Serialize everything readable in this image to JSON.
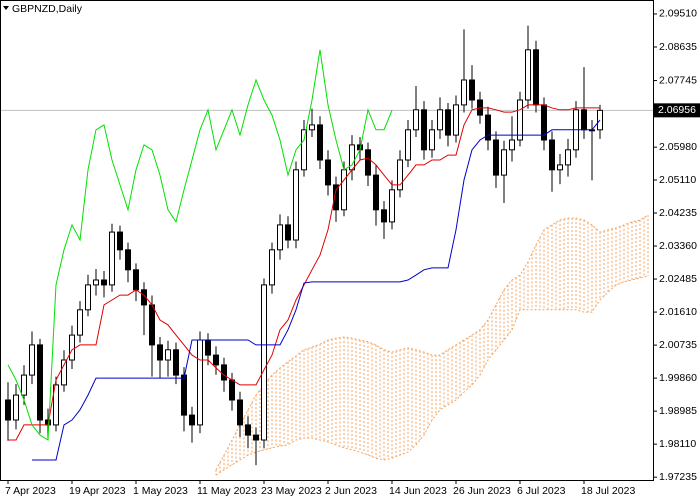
{
  "chart_data": {
    "type": "candlestick",
    "title": "GBPNZD,Daily",
    "categories": [
      "7 Apr 2023",
      null,
      null,
      null,
      null,
      null,
      null,
      null,
      "19 Apr 2023",
      null,
      null,
      null,
      null,
      null,
      null,
      null,
      "1 May 2023",
      null,
      null,
      null,
      null,
      null,
      null,
      null,
      "11 May 2023",
      null,
      null,
      null,
      null,
      null,
      null,
      null,
      "23 May 2023",
      null,
      null,
      null,
      null,
      null,
      null,
      null,
      "2 Jun 2023",
      null,
      null,
      null,
      null,
      null,
      null,
      null,
      "14 Jun 2023",
      null,
      null,
      null,
      null,
      null,
      null,
      null,
      "26 Jun 2023",
      null,
      null,
      null,
      null,
      null,
      null,
      null,
      "6 Jul 2023",
      null,
      null,
      null,
      null,
      null,
      null,
      null,
      "18 Jul 2023",
      null,
      null,
      null,
      null,
      null,
      null,
      null,
      null
    ],
    "open": [
      1.9928,
      1.9875,
      1.9941,
      1.9994,
      2.0074,
      1.9875,
      1.9862,
      1.9968,
      2.0034,
      2.01,
      2.0167,
      2.0233,
      2.0246,
      2.0233,
      2.0373,
      2.0326,
      2.0273,
      2.022,
      2.018,
      2.0074,
      2.0034,
      2.0061,
      1.9994,
      1.9888,
      1.9862,
      2.0087,
      2.0047,
      2.0021,
      1.9981,
      1.9928,
      1.9862,
      1.9835,
      1.9822,
      2.0233,
      2.0326,
      2.0392,
      2.0352,
      2.0538,
      2.0644,
      2.0657,
      2.0564,
      2.0498,
      2.0432,
      2.0538,
      2.0604,
      2.0591,
      2.0524,
      2.0432,
      2.04,
      2.0485,
      2.0564,
      2.0644,
      2.0697,
      2.0591,
      2.0644,
      2.0697,
      2.063,
      2.071,
      2.0776,
      2.0723,
      2.0683,
      2.0617,
      2.0524,
      2.0591,
      2.0617,
      2.0723,
      2.0856,
      2.071,
      2.0617,
      2.0538,
      2.0551,
      2.0591,
      2.0697,
      2.0644,
      2.0644,
      null,
      null,
      null,
      null,
      null,
      null
    ],
    "high": [
      1.9975,
      1.997,
      2.002,
      2.011,
      2.009,
      1.9905,
      1.999,
      2.006,
      2.0125,
      2.019,
      2.026,
      2.0275,
      2.027,
      2.0395,
      2.039,
      2.0345,
      2.029,
      2.024,
      2.0205,
      2.0095,
      2.0085,
      2.008,
      2.0015,
      1.991,
      2.011,
      2.0105,
      2.007,
      2.004,
      2,
      1.995,
      1.9885,
      1.9855,
      2.025,
      2.0345,
      2.042,
      2.0415,
      2.056,
      2.067,
      2.07,
      2.068,
      2.059,
      2.052,
      2.056,
      2.063,
      2.0625,
      2.061,
      2.055,
      2.0455,
      2.051,
      2.059,
      2.067,
      2.076,
      2.072,
      2.067,
      2.073,
      2.0715,
      2.0735,
      2.091,
      2.0815,
      2.0745,
      2.0705,
      2.064,
      2.0615,
      2.068,
      2.0745,
      2.092,
      2.088,
      2.073,
      2.064,
      2.058,
      2.062,
      2.072,
      2.081,
      2.067,
      2.071,
      null,
      null,
      null,
      null,
      null,
      null
    ],
    "low": [
      1.982,
      1.985,
      1.9915,
      1.997,
      1.984,
      1.9825,
      1.9845,
      1.995,
      2.001,
      2.008,
      2.015,
      2.0205,
      2.02,
      2.0215,
      2.03,
      2.024,
      2.019,
      2.01,
      1.999,
      1.9985,
      1.999,
      1.997,
      1.9845,
      1.9815,
      1.984,
      2.002,
      1.9995,
      1.995,
      1.99,
      1.983,
      1.98,
      1.9755,
      1.98,
      2.021,
      2.03,
      2.033,
      2.033,
      2.052,
      2.0625,
      2.054,
      2.047,
      2.04,
      2.0415,
      2.051,
      2.0565,
      2.0495,
      2.039,
      2.0355,
      2.038,
      2.0465,
      2.0545,
      2.0625,
      2.0565,
      2.057,
      2.062,
      2.06,
      2.061,
      2.069,
      2.07,
      2.066,
      2.059,
      2.049,
      2.045,
      2.056,
      2.06,
      2.07,
      2.069,
      2.059,
      2.048,
      2.05,
      2.052,
      2.057,
      2.062,
      2.051,
      2.062,
      null,
      null,
      null,
      null,
      null,
      null
    ],
    "close": [
      1.9875,
      1.9941,
      1.9994,
      2.0074,
      1.9875,
      1.9862,
      1.9968,
      2.0034,
      2.01,
      2.0167,
      2.0233,
      2.0246,
      2.0233,
      2.0373,
      2.0326,
      2.0273,
      2.022,
      2.018,
      2.0074,
      2.0034,
      2.0061,
      1.9994,
      1.9888,
      1.9862,
      2.0087,
      2.0047,
      2.0021,
      1.9981,
      1.9928,
      1.9862,
      1.9835,
      1.9822,
      2.0233,
      2.0326,
      2.0392,
      2.0352,
      2.0538,
      2.0644,
      2.0657,
      2.0564,
      2.0498,
      2.0432,
      2.0538,
      2.0604,
      2.0591,
      2.0524,
      2.0432,
      2.04,
      2.0485,
      2.0564,
      2.0644,
      2.0697,
      2.0591,
      2.0644,
      2.0697,
      2.063,
      2.071,
      2.0776,
      2.0723,
      2.0683,
      2.0617,
      2.0524,
      2.0591,
      2.0617,
      2.0723,
      2.0856,
      2.071,
      2.0617,
      2.0538,
      2.0551,
      2.0591,
      2.0697,
      2.0644,
      2.0644,
      2.06956,
      null,
      null,
      null,
      null,
      null,
      null
    ],
    "up_color": "#ffffff",
    "down_color": "#000000",
    "lines": [
      {
        "color": "#e00000",
        "values": [
          1.9822,
          1.9822,
          1.9862,
          1.9862,
          1.9862,
          1.9862,
          1.9981,
          2.0021,
          2.0061,
          2.0074,
          2.0074,
          2.0074,
          2.018,
          2.0193,
          2.0206,
          2.0206,
          2.022,
          2.0206,
          2.018,
          2.014,
          2.0127,
          2.01,
          2.0074,
          2.0047,
          2.0034,
          2.0034,
          2.0013,
          1.9994,
          1.9981,
          1.9968,
          1.9968,
          1.9968,
          2.0008,
          2.0047,
          2.0114,
          2.014,
          2.0193,
          2.0233,
          2.0273,
          2.0312,
          2.0379,
          2.0485,
          2.0511,
          2.0538,
          2.0564,
          2.0569,
          2.0551,
          2.0524,
          2.0498,
          2.0498,
          2.0524,
          2.0551,
          2.0551,
          2.0564,
          2.0564,
          2.0577,
          2.0577,
          2.0657,
          2.0697,
          2.0702,
          2.0702,
          2.0697,
          2.0691,
          2.0691,
          2.0697,
          2.071,
          2.071,
          2.071,
          2.0702,
          2.0697,
          2.0697,
          2.0702,
          2.0702,
          2.0702,
          2.0702,
          null,
          null,
          null,
          null,
          null,
          null
        ]
      },
      {
        "color": "#0000c8",
        "values": [
          null,
          null,
          null,
          1.9769,
          1.9769,
          1.9769,
          1.9769,
          1.9862,
          1.9875,
          1.9902,
          1.9941,
          1.9986,
          1.9986,
          1.9986,
          1.9986,
          1.9986,
          1.9986,
          1.9986,
          1.9986,
          1.9986,
          1.9986,
          1.9986,
          1.9986,
          2.0087,
          2.0087,
          2.0087,
          2.0087,
          2.0087,
          2.0087,
          2.0087,
          2.0087,
          2.0074,
          2.0074,
          2.0074,
          2.0074,
          2.0114,
          2.0167,
          2.0238,
          2.0241,
          2.0241,
          2.0241,
          2.0241,
          2.0241,
          2.0241,
          2.0241,
          2.0241,
          2.0241,
          2.0241,
          2.0241,
          2.0241,
          2.0246,
          2.0259,
          2.0273,
          2.0278,
          2.0278,
          2.0278,
          2.0379,
          2.0511,
          2.0591,
          2.0617,
          2.063,
          2.063,
          2.063,
          2.063,
          2.063,
          2.063,
          2.063,
          2.063,
          2.0644,
          2.0644,
          2.0644,
          2.0644,
          2.0644,
          2.0644,
          2.067,
          null,
          null,
          null,
          null,
          null,
          null
        ]
      },
      {
        "color": "#00e000",
        "values": [
          2.0021,
          1.9981,
          1.9928,
          1.9862,
          1.9835,
          1.9822,
          2.0233,
          2.0326,
          2.0392,
          2.0352,
          2.0538,
          2.0644,
          2.0657,
          2.0564,
          2.0498,
          2.0432,
          2.0538,
          2.0604,
          2.0591,
          2.0524,
          2.0432,
          2.04,
          2.0485,
          2.0564,
          2.0644,
          2.0697,
          2.0591,
          2.0644,
          2.0697,
          2.063,
          2.071,
          2.0776,
          2.0723,
          2.0683,
          2.0617,
          2.0524,
          2.0591,
          2.0617,
          2.0723,
          2.0856,
          2.071,
          2.0617,
          2.0538,
          2.0551,
          2.0591,
          2.0697,
          2.0644,
          2.0644,
          2.06956,
          null,
          null,
          null,
          null,
          null,
          null,
          null,
          null,
          null,
          null,
          null,
          null,
          null,
          null,
          null,
          null,
          null,
          null,
          null,
          null,
          null,
          null,
          null,
          null,
          null,
          null,
          null,
          null,
          null,
          null,
          null,
          null
        ]
      }
    ],
    "cloud": {
      "color": "#f4a460",
      "upper": [
        null,
        null,
        null,
        null,
        null,
        null,
        null,
        null,
        null,
        null,
        null,
        null,
        null,
        null,
        null,
        null,
        null,
        null,
        null,
        null,
        null,
        null,
        null,
        null,
        null,
        null,
        1.9743,
        1.9782,
        1.9822,
        1.9862,
        1.9902,
        1.9941,
        1.9968,
        1.9994,
        2.0013,
        2.0029,
        2.0045,
        2.0061,
        2.0068,
        2.0076,
        2.0087,
        2.0092,
        2.0095,
        2.0092,
        2.0087,
        2.0082,
        2.0074,
        2.0061,
        2.0055,
        2.0061,
        2.0066,
        2.0061,
        2.0055,
        2.0047,
        2.0047,
        2.0061,
        2.0074,
        2.0087,
        2.01,
        2.0114,
        2.014,
        2.018,
        2.022,
        2.0246,
        2.0259,
        2.0294,
        2.0339,
        2.0379,
        2.0392,
        2.0405,
        2.041,
        2.041,
        2.0405,
        2.0392,
        2.0373,
        2.0379,
        2.0384,
        2.0392,
        2.04,
        2.0405,
        2.0418
      ],
      "lower": [
        null,
        null,
        null,
        null,
        null,
        null,
        null,
        null,
        null,
        null,
        null,
        null,
        null,
        null,
        null,
        null,
        null,
        null,
        null,
        null,
        null,
        null,
        null,
        null,
        null,
        null,
        1.9729,
        1.9743,
        1.9756,
        1.9769,
        1.9782,
        1.979,
        1.9796,
        1.9801,
        1.9806,
        1.9809,
        1.9822,
        1.9827,
        1.9827,
        1.9822,
        1.9817,
        1.9809,
        1.9801,
        1.9796,
        1.979,
        1.9782,
        1.9774,
        1.9769,
        1.9774,
        1.9782,
        1.979,
        1.9809,
        1.9835,
        1.9875,
        1.9902,
        1.9915,
        1.9928,
        1.9949,
        1.9968,
        1.9994,
        2.0034,
        2.0061,
        2.0087,
        2.0114,
        2.0167,
        2.0167,
        2.0167,
        2.0167,
        2.0167,
        2.0167,
        2.0167,
        2.0167,
        2.0161,
        2.0161,
        2.0193,
        2.0214,
        2.0233,
        2.0241,
        2.0246,
        2.0251,
        2.0257
      ]
    },
    "bid": 2.06956,
    "bid_color": "#c0c0c0",
    "ylim": [
      1.9716,
      2.0988
    ],
    "yticks": [
      {
        "value": 2.0951,
        "label": "2.09510"
      },
      2.08635,
      2.07745,
      {
        "value": 2.0598,
        "label": "2.05980"
      },
      {
        "value": 2.0511,
        "label": "2.05110"
      },
      2.04235,
      {
        "value": 2.0336,
        "label": "2.03360"
      },
      2.02485,
      {
        "value": 2.0161,
        "label": "2.01610"
      },
      2.00735,
      {
        "value": 1.9986,
        "label": "1.99860"
      },
      1.98985,
      {
        "value": 1.9811,
        "label": "1.98110"
      },
      1.97235
    ],
    "grid": false
  }
}
